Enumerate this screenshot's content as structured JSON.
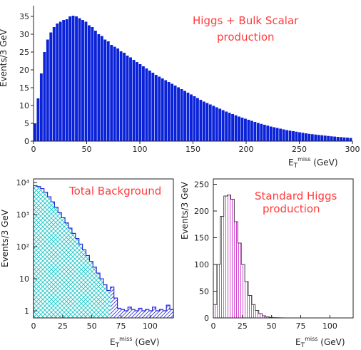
{
  "chart_data": [
    {
      "type": "bar",
      "title": "",
      "annotation": [
        "Higgs + Bulk Scalar",
        "production"
      ],
      "xlabel": "E_T^miss (GeV)",
      "ylabel": "Events/3 GeV",
      "xlim": [
        0,
        300
      ],
      "ylim": [
        0,
        38
      ],
      "bin_width": 3,
      "xticks": [
        0,
        50,
        100,
        150,
        200,
        250,
        300
      ],
      "yticks": [
        0,
        5,
        10,
        15,
        20,
        25,
        30,
        35
      ],
      "color": "#0a22d8",
      "values": [
        5.0,
        12.0,
        19.0,
        25.0,
        28.5,
        30.5,
        32.0,
        33.0,
        33.5,
        34.0,
        34.2,
        35.0,
        35.2,
        35.0,
        34.5,
        34.0,
        33.5,
        32.5,
        32.0,
        31.0,
        30.0,
        29.5,
        28.5,
        28.0,
        27.0,
        26.5,
        26.0,
        25.2,
        24.8,
        24.0,
        23.5,
        22.8,
        22.2,
        21.6,
        21.0,
        20.4,
        19.8,
        19.2,
        18.6,
        18.1,
        17.6,
        17.1,
        16.6,
        16.1,
        15.6,
        15.1,
        14.6,
        14.1,
        13.6,
        13.1,
        12.6,
        12.1,
        11.6,
        11.1,
        10.7,
        10.3,
        9.9,
        9.5,
        9.1,
        8.7,
        8.3,
        7.95,
        7.6,
        7.25,
        6.9,
        6.6,
        6.3,
        6.0,
        5.7,
        5.4,
        5.1,
        4.85,
        4.6,
        4.35,
        4.1,
        3.9,
        3.7,
        3.5,
        3.3,
        3.1,
        2.95,
        2.8,
        2.65,
        2.5,
        2.35,
        2.2,
        2.05,
        1.95,
        1.85,
        1.75,
        1.65,
        1.55,
        1.45,
        1.35,
        1.28,
        1.2,
        1.12,
        1.05,
        0.98,
        0.9
      ]
    },
    {
      "type": "bar",
      "annotation": [
        "Total Background"
      ],
      "xlabel": "E_T^miss (GeV)",
      "ylabel": "Events/3 GeV",
      "log_y": true,
      "xlim": [
        0,
        120
      ],
      "ylim": [
        0.6,
        13000
      ],
      "bin_width": 3,
      "xticks": [
        0,
        25,
        50,
        75,
        100
      ],
      "yticks": [
        1,
        10,
        100,
        1000,
        10000
      ],
      "ytick_labels": [
        "1",
        "10",
        "10²",
        "10³",
        "10⁴"
      ],
      "color": "#19c4c4",
      "tail_color": "#2a2ad8",
      "values": [
        8000,
        7500,
        6500,
        5000,
        3600,
        2500,
        1700,
        1150,
        800,
        550,
        380,
        260,
        180,
        120,
        80,
        53,
        35,
        23,
        15,
        10,
        6.5,
        4.3,
        5.5,
        2.5,
        1.2,
        1.1,
        1.0,
        1.3,
        1.1,
        1.0,
        1.2,
        1.0,
        1.1,
        1.0,
        1.3,
        1.0,
        1.1,
        1.0,
        1.5,
        1.1
      ]
    },
    {
      "type": "bar",
      "annotation": [
        "Standard Higgs",
        "production"
      ],
      "xlabel": "E_T^miss (GeV)",
      "ylabel": "Events/3 GeV",
      "xlim": [
        0,
        120
      ],
      "ylim": [
        0,
        260
      ],
      "bin_width": 3,
      "xticks": [
        0,
        25,
        50,
        75,
        100
      ],
      "yticks": [
        0,
        50,
        100,
        150,
        200,
        250
      ],
      "color": "#cc33cc",
      "values": [
        25,
        100,
        190,
        228,
        230,
        222,
        180,
        140,
        100,
        68,
        42,
        25,
        14,
        8,
        4,
        2,
        1,
        0.5,
        0.3,
        0.1,
        0,
        0,
        0,
        0,
        0,
        0,
        0,
        0,
        0,
        0,
        0,
        0,
        0,
        0,
        0,
        0,
        0,
        0,
        0,
        0
      ]
    }
  ]
}
